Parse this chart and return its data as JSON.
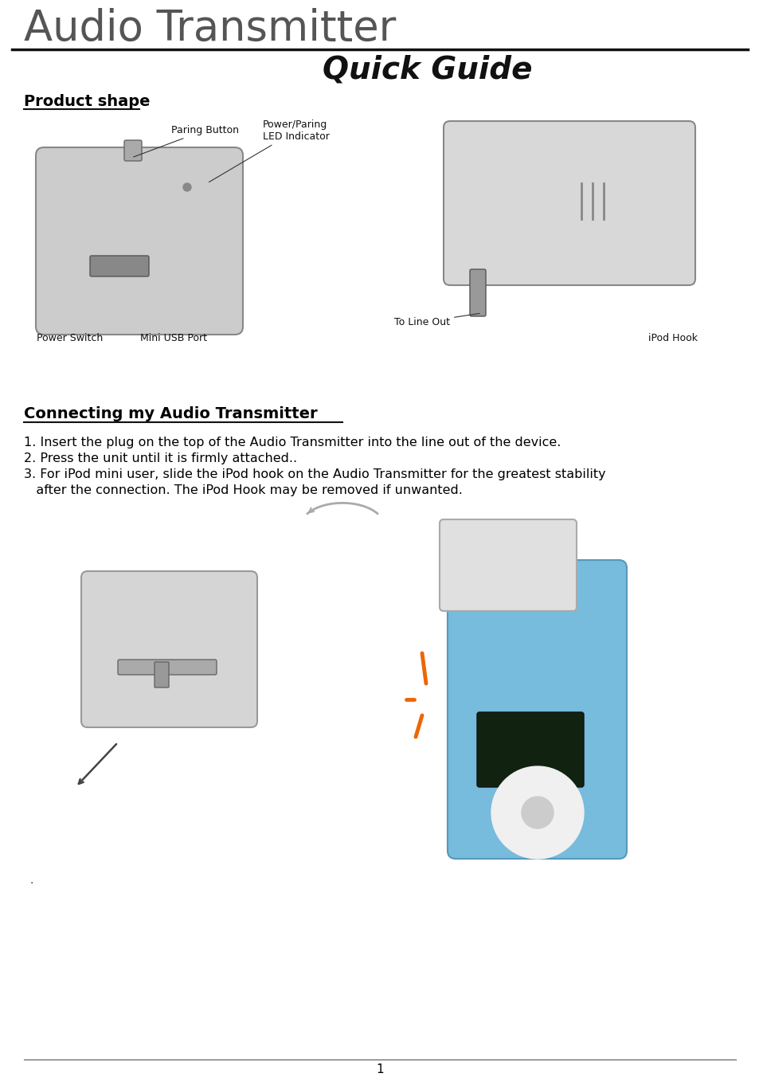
{
  "title_line1": "Audio Transmitter",
  "title_line2": "Quick Guide",
  "section1_title": "Product shape",
  "section2_title": "Connecting my Audio Transmitter",
  "instructions": [
    "1. Insert the plug on the top of the Audio Transmitter into the line out of the device.",
    "2. Press the unit until it is firmly attached..",
    "3. For iPod mini user, slide the iPod hook on the Audio Transmitter for the greatest stability",
    "   after the connection. The iPod Hook may be removed if unwanted."
  ],
  "page_number": "1",
  "bg_color": "#ffffff",
  "text_color": "#000000",
  "title1_color": "#555555",
  "title1_fontsize": 38,
  "title2_fontsize": 28,
  "section_fontsize": 14,
  "body_fontsize": 11.5,
  "page_num_fontsize": 11
}
